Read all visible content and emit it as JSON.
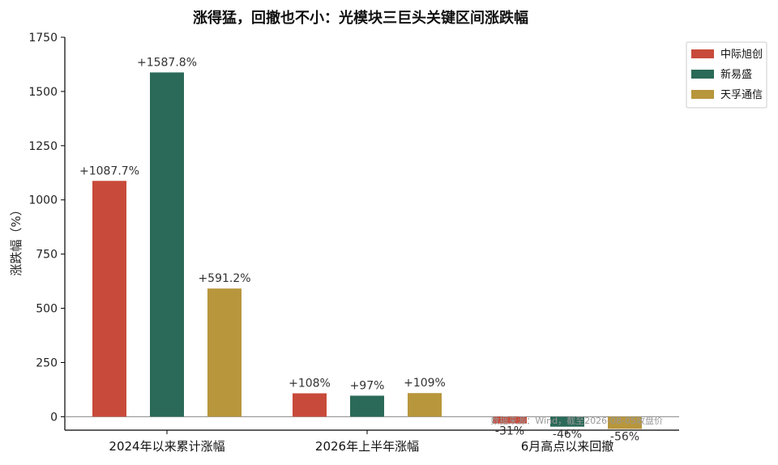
{
  "chart_data": {
    "type": "bar",
    "title": "涨得猛，回撤也不小：光模块三巨头关键区间涨跌幅",
    "xlabel": "",
    "ylabel": "涨跌幅（%）",
    "ylim": [
      -62,
      1750
    ],
    "yticks": [
      0,
      250,
      500,
      750,
      1000,
      1250,
      1500,
      1750
    ],
    "categories": [
      "2024年以来累计涨幅",
      "2026年上半年涨幅",
      "6月高点以来回撤"
    ],
    "series": [
      {
        "name": "中际旭创",
        "color": "#c84a3a",
        "values": [
          1087.7,
          108,
          -31
        ],
        "labels": [
          "+1087.7%",
          "+108%",
          "-31%"
        ]
      },
      {
        "name": "新易盛",
        "color": "#2b6a58",
        "values": [
          1587.8,
          97,
          -46
        ],
        "labels": [
          "+1587.8%",
          "+97%",
          "-46%"
        ]
      },
      {
        "name": "天孚通信",
        "color": "#b8963c",
        "values": [
          591.2,
          109,
          -56
        ],
        "labels": [
          "+591.2%",
          "+109%",
          "-56%"
        ]
      }
    ],
    "legend_position": "top-right",
    "grid": false,
    "source_note": "数据来源：Wind，截至2026-08-05收盘价"
  }
}
